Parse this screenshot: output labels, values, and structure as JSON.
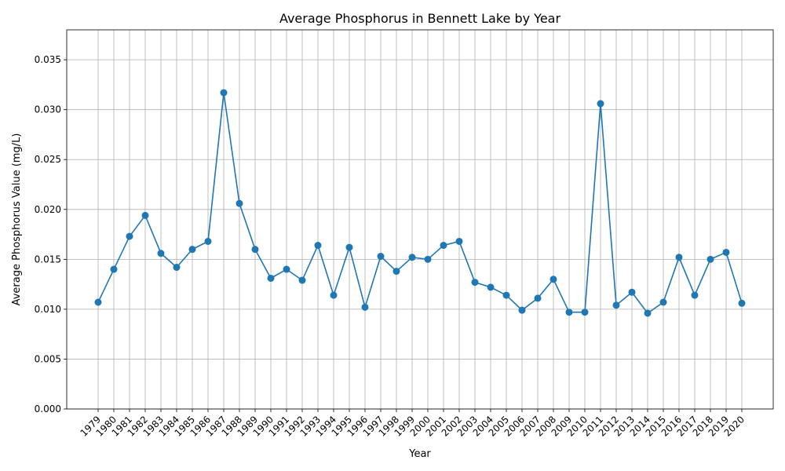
{
  "chart_data": {
    "type": "line",
    "title": "Average Phosphorus in Bennett Lake by Year",
    "xlabel": "Year",
    "ylabel": "Average Phosphorus Value (mg/L)",
    "ylim": [
      0,
      0.038
    ],
    "yticks": [
      "0.000",
      "0.005",
      "0.010",
      "0.015",
      "0.020",
      "0.025",
      "0.030",
      "0.035"
    ],
    "grid": true,
    "marker": "circle",
    "line_color": "#1f77b4",
    "categories": [
      "1979",
      "1980",
      "1981",
      "1982",
      "1983",
      "1984",
      "1985",
      "1986",
      "1987",
      "1988",
      "1989",
      "1990",
      "1991",
      "1992",
      "1993",
      "1994",
      "1995",
      "1996",
      "1997",
      "1998",
      "1999",
      "2000",
      "2001",
      "2002",
      "2003",
      "2004",
      "2005",
      "2006",
      "2007",
      "2008",
      "2009",
      "2010",
      "2011",
      "2012",
      "2013",
      "2014",
      "2015",
      "2016",
      "2017",
      "2018",
      "2019",
      "2020"
    ],
    "values": [
      0.0107,
      0.014,
      0.0173,
      0.0194,
      0.0156,
      0.0142,
      0.016,
      0.0168,
      0.0317,
      0.0206,
      0.016,
      0.0131,
      0.014,
      0.0129,
      0.0164,
      0.0114,
      0.0162,
      0.0102,
      0.0153,
      0.0138,
      0.0152,
      0.015,
      0.0164,
      0.0168,
      0.0127,
      0.0122,
      0.0114,
      0.0099,
      0.0111,
      0.013,
      0.0097,
      0.0097,
      0.0306,
      0.0104,
      0.0117,
      0.0096,
      0.0107,
      0.0152,
      0.0114,
      0.015,
      0.0157,
      0.0106
    ]
  }
}
